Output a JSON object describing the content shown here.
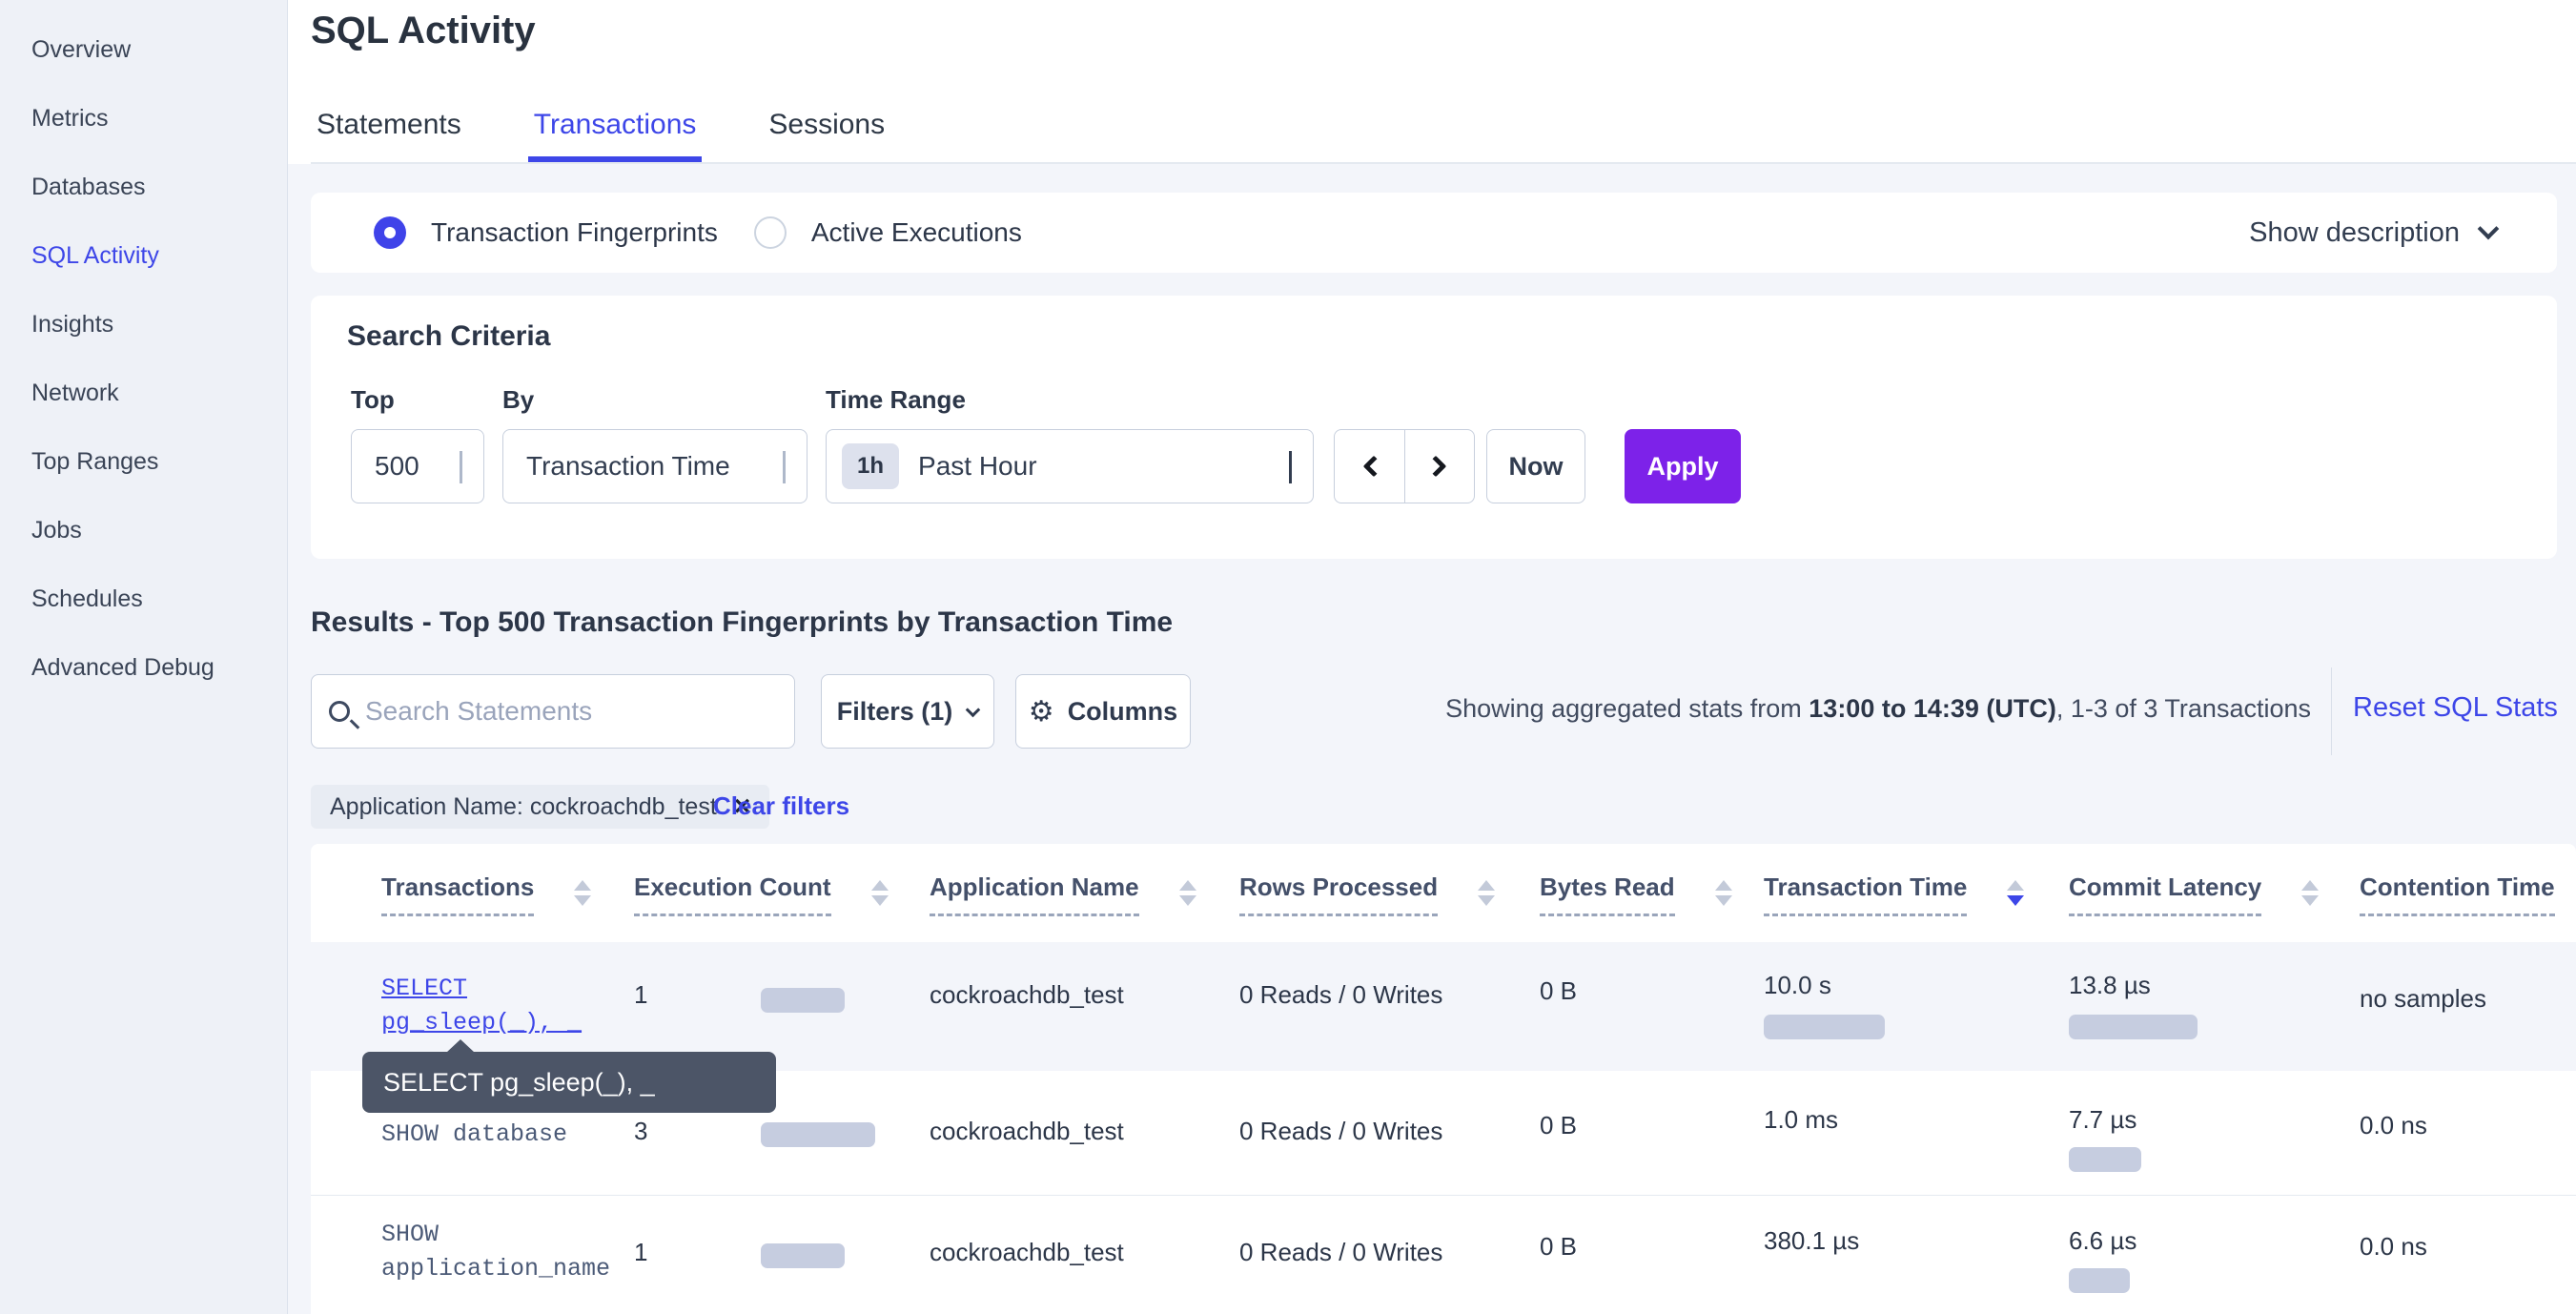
{
  "colors": {
    "accent_blue": "#3d46e8",
    "apply_purple": "#7d22e9",
    "row_highlight": "#f3f5fa",
    "bar_fill": "#c6cde0",
    "tooltip_bg": "#4c5567",
    "sidebar_bg": "#eef1f7"
  },
  "sidebar": {
    "items": [
      {
        "label": "Overview",
        "active": false
      },
      {
        "label": "Metrics",
        "active": false
      },
      {
        "label": "Databases",
        "active": false
      },
      {
        "label": "SQL Activity",
        "active": true
      },
      {
        "label": "Insights",
        "active": false
      },
      {
        "label": "Network",
        "active": false
      },
      {
        "label": "Top Ranges",
        "active": false
      },
      {
        "label": "Jobs",
        "active": false
      },
      {
        "label": "Schedules",
        "active": false
      },
      {
        "label": "Advanced Debug",
        "active": false
      }
    ]
  },
  "header": {
    "title": "SQL Activity",
    "tabs": [
      {
        "label": "Statements",
        "active": false
      },
      {
        "label": "Transactions",
        "active": true
      },
      {
        "label": "Sessions",
        "active": false
      }
    ]
  },
  "view_toggle": {
    "options": [
      {
        "label": "Transaction Fingerprints",
        "selected": true
      },
      {
        "label": "Active Executions",
        "selected": false
      }
    ],
    "show_description": "Show description"
  },
  "search_criteria": {
    "title": "Search Criteria",
    "top": {
      "label": "Top",
      "value": "500"
    },
    "by": {
      "label": "By",
      "value": "Transaction Time"
    },
    "time_range": {
      "label": "Time Range",
      "badge": "1h",
      "value": "Past Hour"
    },
    "now_label": "Now",
    "apply_label": "Apply"
  },
  "results": {
    "heading": "Results - Top 500 Transaction Fingerprints by Transaction Time",
    "search_placeholder": "Search Statements",
    "filters_label": "Filters (1)",
    "columns_label": "Columns",
    "stats_prefix": "Showing aggregated stats from ",
    "stats_bold": "13:00 to 14:39 (UTC)",
    "stats_suffix": ", 1-3 of 3 Transactions",
    "reset_label": "Reset SQL Stats",
    "filter_chip": "Application Name: cockroachdb_test",
    "clear_filters": "Clear filters"
  },
  "icons": {
    "close": "×",
    "gear": "⚙"
  },
  "tooltip": {
    "text": "SELECT pg_sleep(_), _"
  },
  "table": {
    "columns": [
      {
        "label": "Transactions",
        "sort": "none"
      },
      {
        "label": "Execution Count",
        "sort": "none"
      },
      {
        "label": "Application Name",
        "sort": "none"
      },
      {
        "label": "Rows Processed",
        "sort": "none"
      },
      {
        "label": "Bytes Read",
        "sort": "none"
      },
      {
        "label": "Transaction Time",
        "sort": "desc"
      },
      {
        "label": "Commit Latency",
        "sort": "none"
      },
      {
        "label": "Contention Time",
        "sort": "none"
      }
    ],
    "rows": [
      {
        "transaction_line1": "SELECT",
        "transaction_line2": "pg_sleep(_), _",
        "execution_count": "1",
        "exec_bar_w": 88,
        "application_name": "cockroachdb_test",
        "rows_processed": "0 Reads / 0 Writes",
        "bytes_read": "0 B",
        "transaction_time": "10.0 s",
        "tt_bar_w": 127,
        "commit_latency": "13.8 µs",
        "cl_bar_w": 135,
        "contention_time": "no samples"
      },
      {
        "transaction_line1": "SHOW database",
        "transaction_line2": "",
        "execution_count": "3",
        "exec_bar_w": 120,
        "application_name": "cockroachdb_test",
        "rows_processed": "0 Reads / 0 Writes",
        "bytes_read": "0 B",
        "transaction_time": "1.0 ms",
        "tt_bar_w": 0,
        "commit_latency": "7.7 µs",
        "cl_bar_w": 76,
        "contention_time": "0.0 ns"
      },
      {
        "transaction_line1": "SHOW",
        "transaction_line2": "application_name",
        "execution_count": "1",
        "exec_bar_w": 88,
        "application_name": "cockroachdb_test",
        "rows_processed": "0 Reads / 0 Writes",
        "bytes_read": "0 B",
        "transaction_time": "380.1 µs",
        "tt_bar_w": 0,
        "commit_latency": "6.6 µs",
        "cl_bar_w": 64,
        "contention_time": "0.0 ns"
      }
    ]
  }
}
